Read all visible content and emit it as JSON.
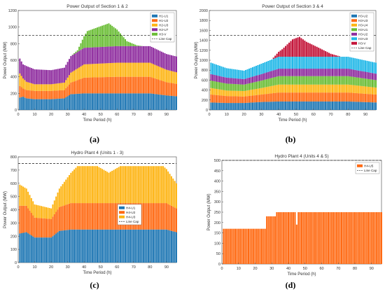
{
  "captions": [
    "(a)",
    "(b)",
    "(c)",
    "(d)"
  ],
  "colors": {
    "blue": "#1f77b4",
    "orange": "#ff6a13",
    "yellow": "#fdb515",
    "purple": "#8e2b9e",
    "green": "#6abd35",
    "cyan": "#22b8e8",
    "crimson": "#c4163a",
    "cap_line": "#333333"
  },
  "chart_data": [
    {
      "type": "bar",
      "stacked": true,
      "title": "Power Output of Section 1 & 2",
      "xlabel": "Time Period (h)",
      "ylabel": "Power Output (MW)",
      "xlim": [
        0,
        96
      ],
      "ylim": [
        0,
        1200
      ],
      "xticks": [
        0,
        10,
        20,
        30,
        40,
        50,
        60,
        70,
        80,
        90
      ],
      "yticks": [
        0,
        200,
        400,
        600,
        800,
        1000,
        1200
      ],
      "line_cap": 900,
      "legend_placement": "top-right",
      "series": [
        {
          "name": "H1-U1",
          "color": "#1f77b4",
          "anchors": [
            [
              1,
              150
            ],
            [
              3,
              160
            ],
            [
              5,
              140
            ],
            [
              10,
              130
            ],
            [
              20,
              130
            ],
            [
              28,
              140
            ],
            [
              32,
              190
            ],
            [
              40,
              200
            ],
            [
              60,
              200
            ],
            [
              80,
              200
            ],
            [
              90,
              175
            ],
            [
              96,
              165
            ]
          ]
        },
        {
          "name": "H1-U2",
          "color": "#ff6a13",
          "anchors": [
            [
              1,
              140
            ],
            [
              3,
              100
            ],
            [
              5,
              100
            ],
            [
              10,
              100
            ],
            [
              20,
              100
            ],
            [
              28,
              100
            ],
            [
              32,
              140
            ],
            [
              40,
              190
            ],
            [
              60,
              200
            ],
            [
              80,
              200
            ],
            [
              90,
              160
            ],
            [
              96,
              150
            ]
          ]
        },
        {
          "name": "H2-U3",
          "color": "#fdb515",
          "anchors": [
            [
              1,
              150
            ],
            [
              3,
              120
            ],
            [
              5,
              100
            ],
            [
              10,
              80
            ],
            [
              20,
              80
            ],
            [
              28,
              90
            ],
            [
              32,
              120
            ],
            [
              40,
              160
            ],
            [
              60,
              170
            ],
            [
              80,
              170
            ],
            [
              90,
              150
            ],
            [
              96,
              140
            ]
          ]
        },
        {
          "name": "H2-U7",
          "color": "#8e2b9e",
          "anchors": [
            [
              1,
              180
            ],
            [
              3,
              170
            ],
            [
              5,
              190
            ],
            [
              10,
              180
            ],
            [
              20,
              170
            ],
            [
              28,
              180
            ],
            [
              32,
              200
            ],
            [
              40,
              200
            ],
            [
              60,
              200
            ],
            [
              80,
              200
            ],
            [
              90,
              190
            ],
            [
              96,
              190
            ]
          ]
        },
        {
          "name": "H3-V",
          "color": "#6abd35",
          "anchors": [
            [
              1,
              0
            ],
            [
              32,
              0
            ],
            [
              36,
              20
            ],
            [
              42,
              200
            ],
            [
              50,
              250
            ],
            [
              55,
              280
            ],
            [
              60,
              200
            ],
            [
              66,
              60
            ],
            [
              72,
              10
            ],
            [
              76,
              0
            ],
            [
              96,
              0
            ]
          ]
        }
      ]
    },
    {
      "type": "bar",
      "stacked": true,
      "title": "Power Output of Section 3 & 4",
      "xlabel": "Time Period (h)",
      "ylabel": "Power Output (MW)",
      "xlim": [
        0,
        96
      ],
      "ylim": [
        0,
        2000
      ],
      "xticks": [
        0,
        10,
        20,
        30,
        40,
        50,
        60,
        70,
        80,
        90
      ],
      "yticks": [
        0,
        200,
        400,
        600,
        800,
        1000,
        1200,
        1400,
        1600,
        1800,
        2000
      ],
      "line_cap": 1500,
      "legend_placement": "top-right",
      "series": [
        {
          "name": "H3-U2",
          "color": "#1f77b4",
          "anchors": [
            [
              1,
              150
            ],
            [
              10,
              140
            ],
            [
              20,
              140
            ],
            [
              30,
              160
            ],
            [
              40,
              170
            ],
            [
              60,
              170
            ],
            [
              80,
              170
            ],
            [
              96,
              150
            ]
          ]
        },
        {
          "name": "H3-U3",
          "color": "#ff6a13",
          "anchors": [
            [
              1,
              160
            ],
            [
              10,
              140
            ],
            [
              20,
              130
            ],
            [
              30,
              150
            ],
            [
              40,
              180
            ],
            [
              60,
              180
            ],
            [
              80,
              180
            ],
            [
              96,
              160
            ]
          ]
        },
        {
          "name": "H3-U4",
          "color": "#fdb515",
          "anchors": [
            [
              1,
              130
            ],
            [
              10,
              110
            ],
            [
              20,
              110
            ],
            [
              30,
              130
            ],
            [
              40,
              160
            ],
            [
              60,
              160
            ],
            [
              80,
              160
            ],
            [
              96,
              140
            ]
          ]
        },
        {
          "name": "H3-U1",
          "color": "#6abd35",
          "anchors": [
            [
              1,
              150
            ],
            [
              10,
              140
            ],
            [
              20,
              130
            ],
            [
              30,
              150
            ],
            [
              40,
              170
            ],
            [
              60,
              170
            ],
            [
              80,
              170
            ],
            [
              96,
              150
            ]
          ]
        },
        {
          "name": "H3-U2",
          "color": "#8e2b9e",
          "anchors": [
            [
              1,
              130
            ],
            [
              10,
              120
            ],
            [
              20,
              110
            ],
            [
              30,
              130
            ],
            [
              40,
              150
            ],
            [
              60,
              150
            ],
            [
              80,
              150
            ],
            [
              96,
              130
            ]
          ]
        },
        {
          "name": "H3-U3",
          "color": "#22b8e8",
          "anchors": [
            [
              1,
              230
            ],
            [
              10,
              190
            ],
            [
              20,
              170
            ],
            [
              30,
              210
            ],
            [
              40,
              240
            ],
            [
              60,
              240
            ],
            [
              80,
              240
            ],
            [
              96,
              220
            ]
          ]
        },
        {
          "name": "H3-V",
          "color": "#c4163a",
          "anchors": [
            [
              1,
              0
            ],
            [
              36,
              0
            ],
            [
              42,
              150
            ],
            [
              48,
              350
            ],
            [
              52,
              400
            ],
            [
              56,
              300
            ],
            [
              62,
              200
            ],
            [
              70,
              60
            ],
            [
              76,
              0
            ],
            [
              96,
              0
            ]
          ]
        }
      ]
    },
    {
      "type": "bar",
      "stacked": true,
      "title": "Hydro Plant 4 (Units 1 - 3)",
      "xlabel": "Time Period (h)",
      "ylabel": "Power Output (MW)",
      "xlim": [
        0,
        96
      ],
      "ylim": [
        0,
        800
      ],
      "xticks": [
        0,
        10,
        20,
        30,
        40,
        50,
        60,
        70,
        80,
        90
      ],
      "yticks": [
        0,
        100,
        200,
        300,
        400,
        500,
        600,
        700,
        800
      ],
      "line_cap": 750,
      "legend_placement": "center-right",
      "series": [
        {
          "name": "H4-U1",
          "color": "#1f77b4",
          "anchors": [
            [
              1,
              220
            ],
            [
              5,
              230
            ],
            [
              10,
              190
            ],
            [
              20,
              190
            ],
            [
              25,
              240
            ],
            [
              32,
              250
            ],
            [
              60,
              250
            ],
            [
              90,
              250
            ],
            [
              96,
              230
            ]
          ]
        },
        {
          "name": "H4-U2",
          "color": "#ff6a13",
          "anchors": [
            [
              1,
              210
            ],
            [
              5,
              200
            ],
            [
              10,
              150
            ],
            [
              20,
              140
            ],
            [
              25,
              180
            ],
            [
              32,
              200
            ],
            [
              60,
              200
            ],
            [
              90,
              200
            ],
            [
              96,
              180
            ]
          ]
        },
        {
          "name": "H4-U3",
          "color": "#fdb515",
          "anchors": [
            [
              1,
              160
            ],
            [
              5,
              130
            ],
            [
              10,
              100
            ],
            [
              20,
              80
            ],
            [
              25,
              140
            ],
            [
              36,
              280
            ],
            [
              48,
              280
            ],
            [
              55,
              230
            ],
            [
              62,
              280
            ],
            [
              88,
              280
            ],
            [
              96,
              190
            ]
          ]
        }
      ]
    },
    {
      "type": "bar",
      "stacked": true,
      "title": "Hydro Plant 4 (Units 4 & 5)",
      "xlabel": "Time Period (h)",
      "ylabel": "Power Output (MW)",
      "xlim": [
        0,
        96
      ],
      "ylim": [
        0,
        500
      ],
      "xticks": [
        0,
        10,
        20,
        30,
        40,
        50,
        60,
        70,
        80,
        90
      ],
      "yticks": [
        0,
        50,
        100,
        150,
        200,
        250,
        300,
        350,
        400,
        450,
        500
      ],
      "line_cap": 500,
      "legend_placement": "top-right",
      "series": [
        {
          "name": "H4-U5",
          "color": "#ff6a13",
          "anchors": [
            [
              1,
              170
            ],
            [
              26,
              170
            ],
            [
              27,
              230
            ],
            [
              32,
              230
            ],
            [
              33,
              250
            ],
            [
              44,
              250
            ],
            [
              45,
              190
            ],
            [
              46,
              250
            ],
            [
              96,
              250
            ]
          ]
        }
      ]
    }
  ]
}
